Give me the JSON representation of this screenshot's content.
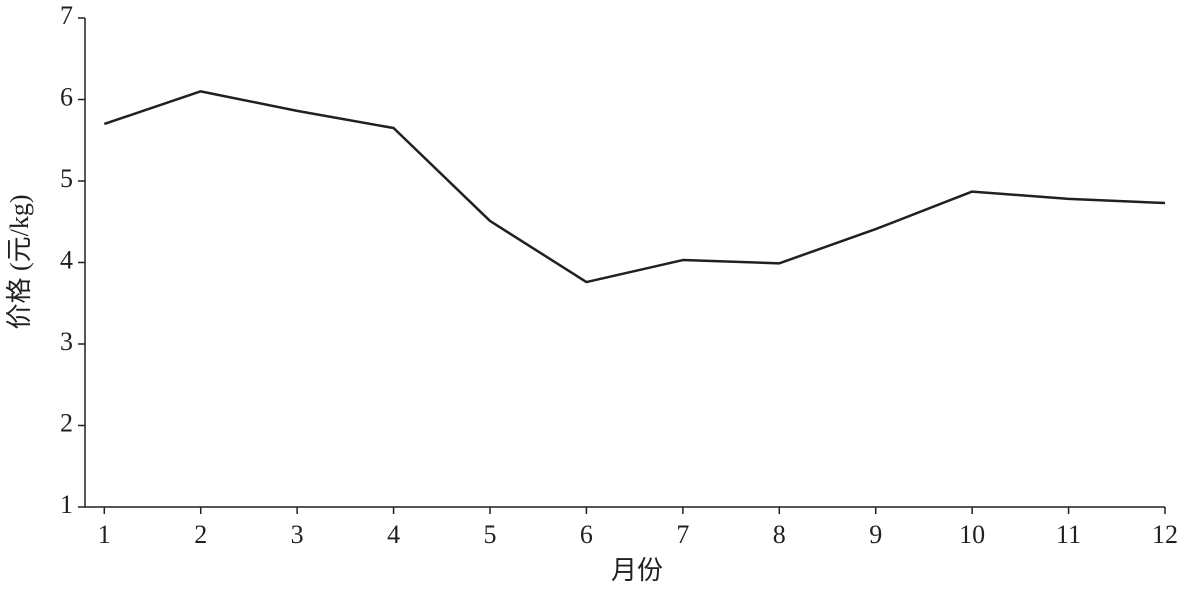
{
  "chart_data": {
    "type": "line",
    "x_label": "月份",
    "y_label": "价格 (元/kg)",
    "x": [
      1,
      2,
      3,
      4,
      5,
      6,
      7,
      8,
      9,
      10,
      11,
      12
    ],
    "series": [
      {
        "color": "#231f20",
        "values": [
          5.7,
          6.1,
          5.86,
          5.65,
          4.51,
          3.76,
          4.03,
          3.99,
          4.41,
          4.87,
          4.78,
          4.73
        ]
      }
    ],
    "xlim": [
      0.8,
      12
    ],
    "xticks": [
      1,
      2,
      3,
      4,
      5,
      6,
      7,
      8,
      9,
      10,
      11,
      12
    ],
    "ylim": [
      1,
      7
    ],
    "yticks": [
      1,
      2,
      3,
      4,
      5,
      6,
      7
    ],
    "grid": false
  }
}
